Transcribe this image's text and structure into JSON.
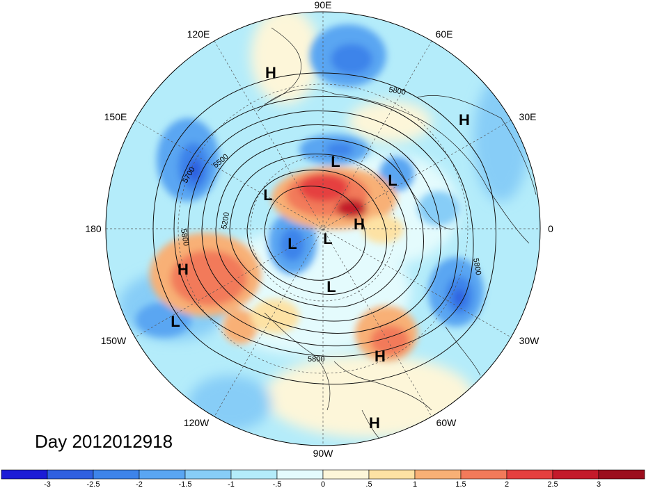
{
  "map": {
    "longitude_labels": [
      "90E",
      "60E",
      "30E",
      "0",
      "30W",
      "60W",
      "90W",
      "120W",
      "150W",
      "180",
      "150E",
      "120E"
    ],
    "pressure_centers": [
      {
        "label": "H",
        "region": "central-siberia"
      },
      {
        "label": "H",
        "region": "western-russia"
      },
      {
        "label": "L",
        "region": "east-siberian-arctic"
      },
      {
        "label": "L",
        "region": "kara-sea"
      },
      {
        "label": "L",
        "region": "chukchi-sea"
      },
      {
        "label": "H",
        "region": "arctic-ocean"
      },
      {
        "label": "L",
        "region": "beaufort-sea"
      },
      {
        "label": "L",
        "region": "north-pole"
      },
      {
        "label": "L",
        "region": "hudson-bay"
      },
      {
        "label": "H",
        "region": "north-pacific"
      },
      {
        "label": "L",
        "region": "central-pacific"
      },
      {
        "label": "H",
        "region": "western-atlantic"
      },
      {
        "label": "H",
        "region": "south-america"
      }
    ],
    "contour_labels": [
      "5800",
      "5700",
      "5500",
      "5200",
      "5800",
      "5800",
      "5800"
    ]
  },
  "colorbar": {
    "ticks": [
      "-3",
      "-2.5",
      "-2",
      "-1.5",
      "-1",
      "-.5",
      "0",
      ".5",
      "1",
      "1.5",
      "2",
      "2.5",
      "3"
    ],
    "colors": [
      "#1c1cd6",
      "#2f60e0",
      "#3d84ea",
      "#5aa6f2",
      "#87cdf7",
      "#b4ecfa",
      "#e4fbfd",
      "#fdf6d9",
      "#fde2a4",
      "#f8b076",
      "#f27a5a",
      "#e5403f",
      "#c41a2a",
      "#9c0f1e"
    ]
  },
  "title": "Day 2012012918"
}
